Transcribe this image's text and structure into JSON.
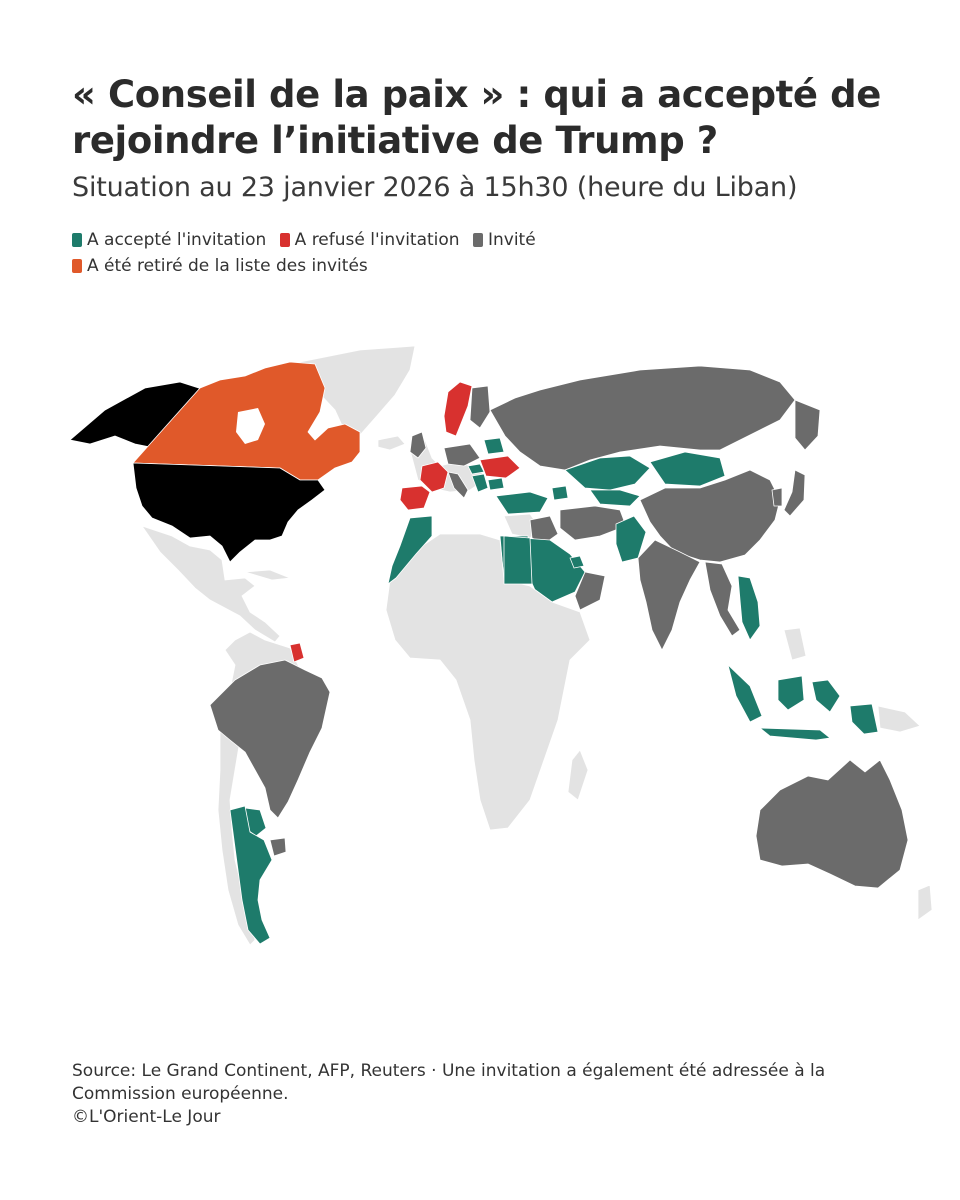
{
  "header": {
    "title": "« Conseil de la paix » : qui a accepté de rejoindre l’initiative de Trump ?",
    "subtitle": "Situation au 23 janvier 2026 à 15h30 (heure du Liban)"
  },
  "legend": {
    "accepted": {
      "label": "A accepté l'invitation",
      "color": "#1e7b6b"
    },
    "refused": {
      "label": "A refusé l'invitation",
      "color": "#d8312f"
    },
    "invited": {
      "label": "Invité",
      "color": "#6b6b6b"
    },
    "withdrawn": {
      "label": "A été retiré de la liste des invités",
      "color": "#e0592a"
    }
  },
  "map": {
    "host_color": "#000000",
    "other_color": "#e3e3e3",
    "status_by_country": {
      "United States": "host",
      "Canada": "withdrawn",
      "Norway": "refused",
      "Sweden": "refused",
      "France": "refused",
      "Spain": "refused",
      "Slovenia": "refused",
      "Ukraine": "refused",
      "Suriname": "refused",
      "Hungary": "accepted",
      "Bulgaria": "accepted",
      "Kosovo": "accepted",
      "Albania": "accepted",
      "Belarus": "accepted",
      "Armenia": "accepted",
      "Azerbaijan": "accepted",
      "Turkey": "accepted",
      "Kazakhstan": "accepted",
      "Uzbekistan": "accepted",
      "Kyrgyzstan": "accepted",
      "Mongolia": "accepted",
      "Morocco": "accepted",
      "Egypt": "accepted",
      "Jordan": "accepted",
      "Saudi Arabia": "accepted",
      "Qatar": "accepted",
      "United Arab Emirates": "accepted",
      "Bahrain": "accepted",
      "Pakistan": "accepted",
      "Vietnam": "accepted",
      "Cambodia": "accepted",
      "Indonesia": "accepted",
      "Argentina": "accepted",
      "Paraguay": "accepted",
      "Russia": "invited",
      "China": "invited",
      "India": "invited",
      "Brazil": "invited",
      "Australia": "invited",
      "Thailand": "invited",
      "Oman": "invited",
      "Iraq": "invited",
      "Italy": "invited",
      "Germany": "invited",
      "Poland": "invited",
      "Greece": "invited",
      "Romania": "invited",
      "Finland": "invited",
      "Uruguay": "invited",
      "Japan": "invited"
    }
  },
  "footer": {
    "source": "Source: Le Grand Continent, AFP, Reuters · Une invitation a également été adressée à la Commission européenne.",
    "copyright": "©L'Orient-Le Jour"
  }
}
